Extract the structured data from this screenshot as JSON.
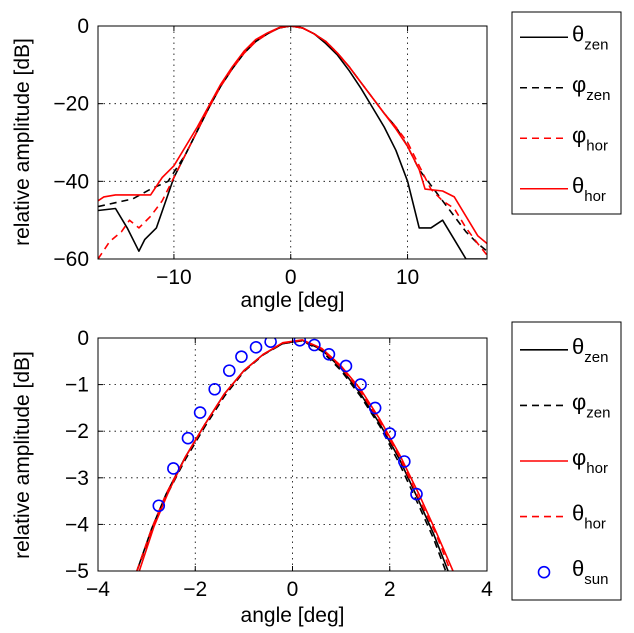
{
  "chart_data": [
    {
      "type": "line",
      "xlabel": "angle [deg]",
      "ylabel": "relative amplitude [dB]",
      "xlim": [
        -16.5,
        16.8
      ],
      "ylim": [
        -60,
        0
      ],
      "xticks": [
        -10,
        0,
        10
      ],
      "yticks": [
        0,
        -20,
        -40,
        -60
      ],
      "xtick_labels": [
        "−10",
        "0",
        "10"
      ],
      "ytick_labels": [
        "0",
        "−20",
        "−40",
        "−60"
      ],
      "grid": true,
      "legend_position": "outside-right",
      "series": [
        {
          "name": "θ",
          "sub": "zen",
          "color": "#000000",
          "dash": "solid",
          "points": [
            [
              -16.5,
              -47.5
            ],
            [
              -15,
              -47
            ],
            [
              -14,
              -52
            ],
            [
              -13,
              -58
            ],
            [
              -12.5,
              -55
            ],
            [
              -11.5,
              -52
            ],
            [
              -10,
              -39
            ],
            [
              -9,
              -33
            ],
            [
              -8,
              -27
            ],
            [
              -7,
              -21
            ],
            [
              -6,
              -15.5
            ],
            [
              -5,
              -11
            ],
            [
              -4,
              -7
            ],
            [
              -3,
              -4
            ],
            [
              -2,
              -2
            ],
            [
              -1,
              -0.5
            ],
            [
              0,
              0
            ],
            [
              1,
              -0.5
            ],
            [
              2,
              -2
            ],
            [
              3,
              -4.5
            ],
            [
              4,
              -7.5
            ],
            [
              5,
              -11.5
            ],
            [
              6,
              -16
            ],
            [
              7,
              -21
            ],
            [
              8,
              -26
            ],
            [
              9,
              -32
            ],
            [
              10,
              -40
            ],
            [
              11,
              -52
            ],
            [
              12,
              -52
            ],
            [
              13,
              -50
            ],
            [
              14,
              -55
            ],
            [
              15,
              -60
            ],
            [
              16.8,
              -60
            ]
          ]
        },
        {
          "name": "φ",
          "sub": "zen",
          "color": "#000000",
          "dash": "dashed",
          "points": [
            [
              -16.5,
              -46.5
            ],
            [
              -15,
              -45.5
            ],
            [
              -13.5,
              -44.5
            ],
            [
              -12,
              -42
            ],
            [
              -10.5,
              -40
            ],
            [
              -9,
              -33
            ],
            [
              -8,
              -27
            ],
            [
              -7,
              -21
            ],
            [
              -6,
              -15.5
            ],
            [
              -5,
              -11
            ],
            [
              -4,
              -7
            ],
            [
              -3,
              -4
            ],
            [
              -2,
              -2
            ],
            [
              -1,
              -0.5
            ],
            [
              0,
              0
            ],
            [
              1,
              -0.5
            ],
            [
              2,
              -2
            ],
            [
              3,
              -4
            ],
            [
              4,
              -7
            ],
            [
              5,
              -10.5
            ],
            [
              6,
              -14.5
            ],
            [
              7,
              -18.5
            ],
            [
              8,
              -22.5
            ],
            [
              9,
              -26
            ],
            [
              10,
              -31
            ],
            [
              11,
              -37
            ],
            [
              12,
              -41
            ],
            [
              13,
              -45
            ],
            [
              14,
              -49
            ],
            [
              15,
              -53
            ],
            [
              16,
              -56
            ],
            [
              16.8,
              -58
            ]
          ]
        },
        {
          "name": "φ",
          "sub": "hor",
          "color": "#ff0000",
          "dash": "dashed",
          "points": [
            [
              -16.5,
              -60
            ],
            [
              -15.5,
              -55.5
            ],
            [
              -14.5,
              -53
            ],
            [
              -13.8,
              -50
            ],
            [
              -13,
              -52
            ],
            [
              -12,
              -49
            ],
            [
              -11,
              -45
            ],
            [
              -10,
              -39
            ],
            [
              -9,
              -33
            ],
            [
              -8,
              -27
            ],
            [
              -7,
              -21
            ],
            [
              -6,
              -15.5
            ],
            [
              -5,
              -11
            ],
            [
              -4,
              -7
            ],
            [
              -3,
              -4
            ],
            [
              -2,
              -2
            ],
            [
              -1,
              -0.5
            ],
            [
              0,
              0
            ],
            [
              1,
              -0.5
            ],
            [
              2,
              -2
            ],
            [
              3,
              -4
            ],
            [
              4,
              -7
            ],
            [
              5,
              -10.5
            ],
            [
              6,
              -14.5
            ],
            [
              7,
              -18.5
            ],
            [
              8,
              -22.5
            ],
            [
              9,
              -26
            ],
            [
              10,
              -30
            ],
            [
              11,
              -36
            ],
            [
              12,
              -42
            ],
            [
              13,
              -45
            ],
            [
              14,
              -47
            ],
            [
              15,
              -52
            ],
            [
              16,
              -56
            ],
            [
              16.8,
              -59
            ]
          ]
        },
        {
          "name": "θ",
          "sub": "hor",
          "color": "#ff0000",
          "dash": "solid",
          "points": [
            [
              -16.5,
              -45
            ],
            [
              -16,
              -44
            ],
            [
              -15,
              -43.5
            ],
            [
              -12,
              -43.5
            ],
            [
              -11,
              -39
            ],
            [
              -10,
              -36
            ],
            [
              -9,
              -31
            ],
            [
              -8,
              -26
            ],
            [
              -7,
              -20.5
            ],
            [
              -6,
              -15
            ],
            [
              -5,
              -10.5
            ],
            [
              -4,
              -6.5
            ],
            [
              -3,
              -3.5
            ],
            [
              -2,
              -1.8
            ],
            [
              -1,
              -0.4
            ],
            [
              0,
              0
            ],
            [
              1,
              -0.5
            ],
            [
              2,
              -2
            ],
            [
              3,
              -4
            ],
            [
              4,
              -7
            ],
            [
              5,
              -10.5
            ],
            [
              6,
              -14.5
            ],
            [
              7,
              -18.5
            ],
            [
              8,
              -22.5
            ],
            [
              9,
              -26.5
            ],
            [
              10,
              -31
            ],
            [
              11,
              -37
            ],
            [
              11.5,
              -42
            ],
            [
              13,
              -42.5
            ],
            [
              14,
              -44
            ],
            [
              15,
              -49
            ],
            [
              16,
              -54
            ],
            [
              16.8,
              -56
            ]
          ]
        }
      ]
    },
    {
      "type": "line",
      "xlabel": "angle [deg]",
      "ylabel": "relative amplitude [dB]",
      "xlim": [
        -4,
        4
      ],
      "ylim": [
        -5,
        0
      ],
      "xticks": [
        -4,
        -2,
        0,
        2,
        4
      ],
      "yticks": [
        0,
        -1,
        -2,
        -3,
        -4,
        -5
      ],
      "xtick_labels": [
        "−4",
        "−2",
        "0",
        "2",
        "4"
      ],
      "ytick_labels": [
        "0",
        "−1",
        "−2",
        "−3",
        "−4",
        "−5"
      ],
      "grid": true,
      "legend_position": "outside-right",
      "series": [
        {
          "name": "θ",
          "sub": "zen",
          "color": "#000000",
          "dash": "solid",
          "points": [
            [
              -3.2,
              -5
            ],
            [
              -2.9,
              -4.1
            ],
            [
              -2.6,
              -3.35
            ],
            [
              -2.2,
              -2.55
            ],
            [
              -1.8,
              -1.85
            ],
            [
              -1.4,
              -1.2
            ],
            [
              -1,
              -0.7
            ],
            [
              -0.6,
              -0.35
            ],
            [
              -0.2,
              -0.12
            ],
            [
              0.2,
              -0.05
            ],
            [
              0.6,
              -0.25
            ],
            [
              1,
              -0.65
            ],
            [
              1.4,
              -1.2
            ],
            [
              1.8,
              -1.85
            ],
            [
              2.2,
              -2.6
            ],
            [
              2.6,
              -3.5
            ],
            [
              2.9,
              -4.2
            ],
            [
              3.2,
              -5
            ]
          ]
        },
        {
          "name": "φ",
          "sub": "zen",
          "color": "#000000",
          "dash": "dashed",
          "points": [
            [
              -3.2,
              -5
            ],
            [
              -2.9,
              -4.15
            ],
            [
              -2.6,
              -3.4
            ],
            [
              -2.2,
              -2.6
            ],
            [
              -1.8,
              -1.9
            ],
            [
              -1.4,
              -1.25
            ],
            [
              -1,
              -0.72
            ],
            [
              -0.6,
              -0.36
            ],
            [
              -0.2,
              -0.12
            ],
            [
              0.2,
              -0.06
            ],
            [
              0.6,
              -0.28
            ],
            [
              1,
              -0.7
            ],
            [
              1.4,
              -1.25
            ],
            [
              1.8,
              -1.9
            ],
            [
              2.2,
              -2.7
            ],
            [
              2.6,
              -3.6
            ],
            [
              2.9,
              -4.3
            ],
            [
              3.15,
              -5
            ]
          ]
        },
        {
          "name": "φ",
          "sub": "hor",
          "color": "#ff0000",
          "dash": "solid",
          "points": [
            [
              -3.15,
              -5
            ],
            [
              -2.85,
              -4.05
            ],
            [
              -2.55,
              -3.3
            ],
            [
              -2.2,
              -2.55
            ],
            [
              -1.8,
              -1.85
            ],
            [
              -1.4,
              -1.2
            ],
            [
              -1,
              -0.7
            ],
            [
              -0.6,
              -0.35
            ],
            [
              -0.2,
              -0.1
            ],
            [
              0.2,
              -0.04
            ],
            [
              0.6,
              -0.22
            ],
            [
              1,
              -0.6
            ],
            [
              1.4,
              -1.1
            ],
            [
              1.8,
              -1.75
            ],
            [
              2.2,
              -2.5
            ],
            [
              2.6,
              -3.35
            ],
            [
              2.95,
              -4.15
            ],
            [
              3.3,
              -5
            ]
          ]
        },
        {
          "name": "θ",
          "sub": "hor",
          "color": "#ff0000",
          "dash": "dashed",
          "points": [
            [
              -3.2,
              -5
            ],
            [
              -2.9,
              -4.1
            ],
            [
              -2.6,
              -3.35
            ],
            [
              -2.2,
              -2.55
            ],
            [
              -1.8,
              -1.85
            ],
            [
              -1.4,
              -1.2
            ],
            [
              -1,
              -0.7
            ],
            [
              -0.6,
              -0.35
            ],
            [
              -0.2,
              -0.11
            ],
            [
              0.2,
              -0.05
            ],
            [
              0.6,
              -0.24
            ],
            [
              1,
              -0.63
            ],
            [
              1.4,
              -1.15
            ],
            [
              1.8,
              -1.8
            ],
            [
              2.2,
              -2.55
            ],
            [
              2.6,
              -3.45
            ],
            [
              2.95,
              -4.2
            ],
            [
              3.25,
              -5
            ]
          ]
        },
        {
          "name": "θ",
          "sub": "sun",
          "color": "#0000ff",
          "marker": "circle",
          "points": [
            [
              -2.75,
              -3.6
            ],
            [
              -2.45,
              -2.8
            ],
            [
              -2.15,
              -2.15
            ],
            [
              -1.9,
              -1.6
            ],
            [
              -1.6,
              -1.1
            ],
            [
              -1.3,
              -0.7
            ],
            [
              -1.05,
              -0.4
            ],
            [
              -0.75,
              -0.2
            ],
            [
              -0.45,
              -0.08
            ],
            [
              0.15,
              -0.05
            ],
            [
              0.45,
              -0.15
            ],
            [
              0.75,
              -0.35
            ],
            [
              1.1,
              -0.6
            ],
            [
              1.4,
              -1.0
            ],
            [
              1.7,
              -1.5
            ],
            [
              2.0,
              -2.05
            ],
            [
              2.3,
              -2.65
            ],
            [
              2.55,
              -3.35
            ]
          ]
        }
      ]
    }
  ]
}
